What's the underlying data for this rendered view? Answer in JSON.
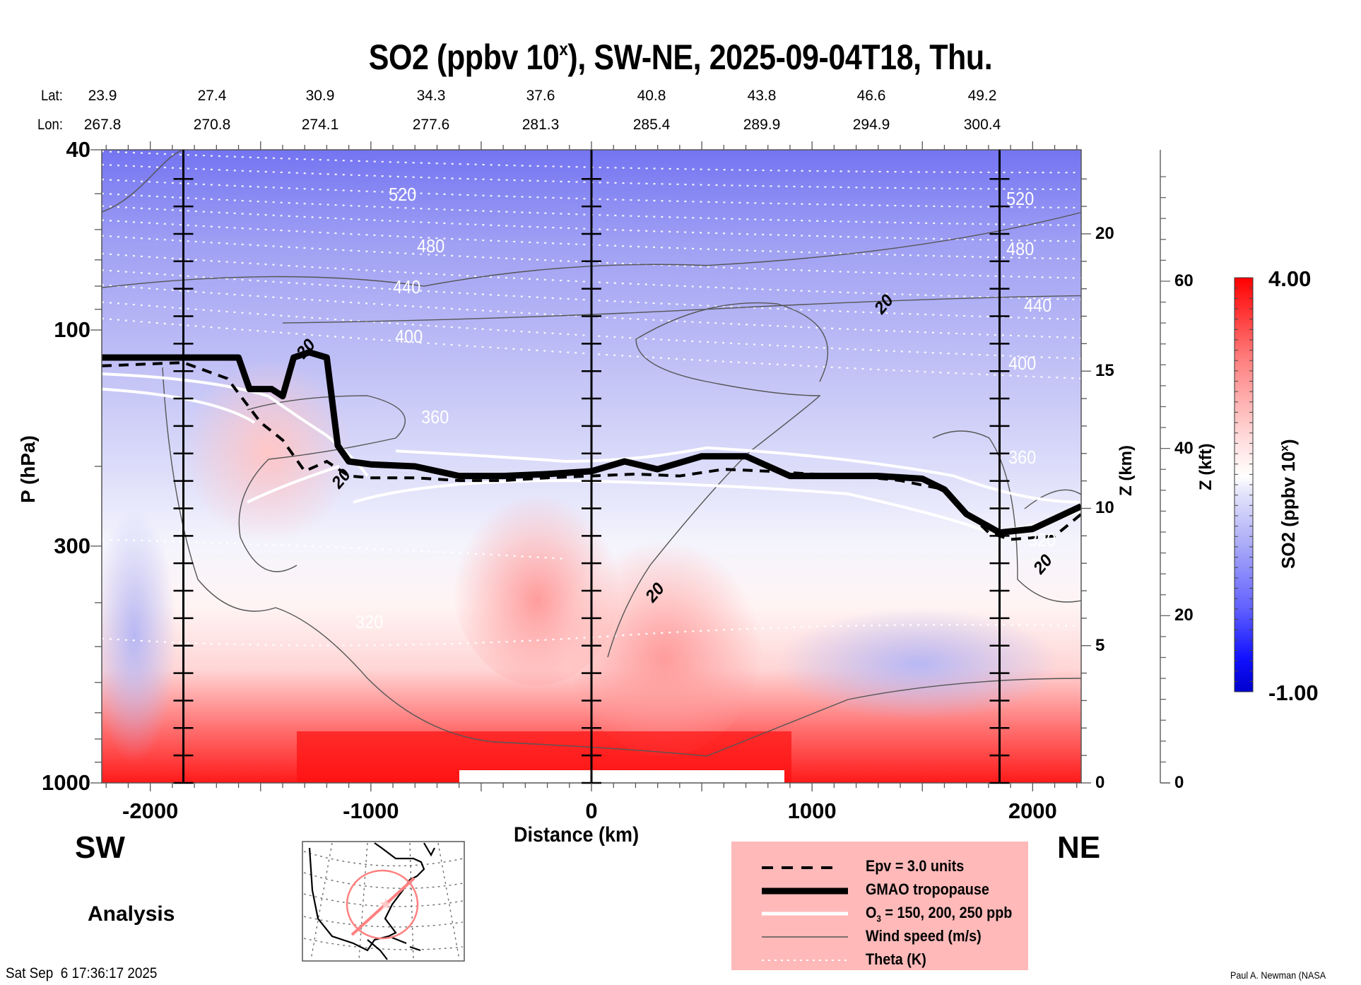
{
  "chart_data": {
    "type": "heatmap",
    "title": "SO2 (ppbv 10",
    "title_sup": "x",
    "title_suffix": "), SW-NE, 2025-09-04T18, Thu.",
    "xlabel": "Distance (km)",
    "ylabel": "P (hPa)",
    "ylabel_right_km": "Z (km)",
    "ylabel_right_kft": "Z (kft)",
    "xlim": [
      -2220,
      2220
    ],
    "ylim_hpa": [
      1000,
      40
    ],
    "y_scale": "log",
    "x_ticks": [
      -2000,
      -1000,
      0,
      1000,
      2000
    ],
    "x_tick_labels": [
      "-2000",
      "-1000",
      "0",
      "1000",
      "2000"
    ],
    "y_ticks": [
      40,
      100,
      300,
      1000
    ],
    "y_tick_labels": [
      "40",
      "100",
      "300",
      "1000"
    ],
    "z_km_ticks": [
      0,
      5,
      10,
      15,
      20
    ],
    "z_km_tick_labels": [
      "0",
      "5",
      "10",
      "15",
      "20"
    ],
    "z_kft_ticks": [
      0,
      20,
      40,
      60
    ],
    "z_kft_tick_labels": [
      "0",
      "20",
      "40",
      "60"
    ],
    "vertical_lines_km": [
      -1850,
      0,
      1850
    ],
    "lat_label": "Lat:",
    "lon_label": "Lon:",
    "lat": [
      "23.9",
      "27.4",
      "30.9",
      "34.3",
      "37.6",
      "40.8",
      "43.8",
      "46.6",
      "49.2"
    ],
    "lon": [
      "267.8",
      "270.8",
      "274.1",
      "277.6",
      "281.3",
      "285.4",
      "289.9",
      "294.9",
      "300.4"
    ],
    "colorbar": {
      "label": "SO2 (ppbv 10",
      "label_sup": "x",
      "label_suffix": ")",
      "min": -1.0,
      "max": 4.0,
      "min_label": "-1.00",
      "max_label": "4.00",
      "colors": [
        "#0000e0",
        "#ffffff",
        "#ff0000"
      ]
    },
    "theta_contours_K": [
      {
        "label": "520",
        "pos": [
          -850,
          50
        ]
      },
      {
        "label": "480",
        "pos": [
          -720,
          65
        ]
      },
      {
        "label": "440",
        "pos": [
          -830,
          80
        ]
      },
      {
        "label": "400",
        "pos": [
          -820,
          103
        ]
      },
      {
        "label": "360",
        "pos": [
          -700,
          155
        ]
      },
      {
        "label": "320",
        "pos": [
          -1000,
          440
        ]
      },
      {
        "label": "520",
        "pos": [
          1950,
          51
        ]
      },
      {
        "label": "480",
        "pos": [
          1950,
          66
        ]
      },
      {
        "label": "440",
        "pos": [
          2030,
          88
        ]
      },
      {
        "label": "400",
        "pos": [
          1960,
          118
        ]
      },
      {
        "label": "360",
        "pos": [
          1960,
          190
        ]
      },
      {
        "label": "320",
        "pos": [
          2050,
          290
        ]
      }
    ],
    "wind_speed_labels": [
      {
        "label": "20",
        "pos": [
          1330,
          88
        ]
      },
      {
        "label": "-20",
        "pos": [
          -1290,
          110
        ]
      },
      {
        "label": "20",
        "pos": [
          -1130,
          213
        ]
      },
      {
        "label": "20",
        "pos": [
          290,
          380
        ]
      },
      {
        "label": "20",
        "pos": [
          2050,
          330
        ]
      }
    ],
    "tropopause_hpa": {
      "x": [
        -2220,
        -1600,
        -1550,
        -1450,
        -1400,
        -1350,
        -1280,
        -1200,
        -1150,
        -1100,
        -1000,
        -800,
        -600,
        -400,
        -200,
        0,
        150,
        300,
        500,
        700,
        900,
        1100,
        1300,
        1500,
        1600,
        1700,
        1850,
        2000,
        2220
      ],
      "p": [
        115,
        115,
        135,
        135,
        140,
        115,
        112,
        115,
        180,
        195,
        198,
        200,
        210,
        210,
        208,
        205,
        195,
        203,
        190,
        190,
        210,
        210,
        210,
        213,
        225,
        255,
        280,
        275,
        245
      ]
    },
    "epv3_hpa": {
      "x": [
        -2220,
        -1850,
        -1650,
        -1500,
        -1400,
        -1300,
        -1200,
        -1100,
        -1000,
        -800,
        -600,
        -400,
        -200,
        0,
        200,
        400,
        600,
        800,
        1000,
        1200,
        1400,
        1600,
        1800,
        1900,
        2100,
        2220
      ],
      "p": [
        120,
        118,
        128,
        160,
        175,
        205,
        195,
        210,
        212,
        212,
        215,
        215,
        212,
        210,
        208,
        210,
        203,
        205,
        208,
        210,
        215,
        225,
        280,
        290,
        285,
        255
      ]
    },
    "map_inset": {
      "section": "SW-NE",
      "center_marker": "star"
    },
    "legend_position": "bottom-center"
  },
  "labels": {
    "sw": "SW",
    "ne": "NE",
    "analysis": "Analysis",
    "timestamp": "Sat Sep  6 17:36:17 2025",
    "credit": "Paul A. Newman (NASA"
  },
  "legend": {
    "items": [
      {
        "label": "Epv = 3.0 units",
        "style": "dashed"
      },
      {
        "label": "GMAO tropopause",
        "style": "thick"
      },
      {
        "label_pre": "O",
        "label_sub": "3",
        "label_post": " = 150, 200, 250 ppb",
        "style": "white"
      },
      {
        "label": "Wind speed (m/s)",
        "style": "thin"
      },
      {
        "label": "Theta (K)",
        "style": "dotted"
      }
    ]
  }
}
